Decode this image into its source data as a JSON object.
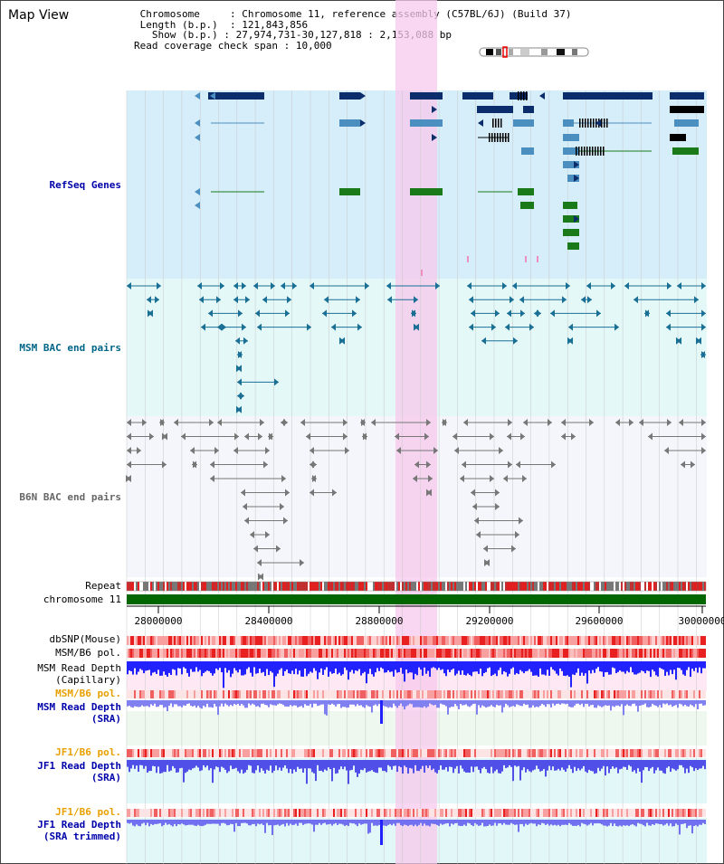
{
  "map_view_title": "Map View",
  "info": {
    "chromosome_key": "Chromosome",
    "chromosome_val": "Chromosome 11, reference assembly (C57BL/6J) (Build 37)",
    "length_key": "Length (b.p.)",
    "length_val": "121,843,856",
    "show_key": "Show (b.p.)",
    "show_val": "27,974,731-30,127,818 : 2,153,088 bp",
    "coverage_key": "Read coverage check span",
    "coverage_val": "10,000"
  },
  "tracks": {
    "refseq": "RefSeq Genes",
    "msm_bac": "MSM BAC end pairs",
    "b6n_bac": "B6N BAC end pairs",
    "repeat": "Repeat",
    "chromosome": "chromosome 11",
    "dbsnp": "dbSNP(Mouse)",
    "msmb6_pol": "MSM/B6 pol.",
    "msm_depth_cap_1": "MSM Read Depth",
    "msm_depth_cap_2": "(Capillary)",
    "msmb6_pol2": "MSM/B6 pol.",
    "msm_depth_sra_1": "MSM Read Depth",
    "msm_depth_sra_2": "(SRA)",
    "jf1b6_pol": "JF1/B6 pol.",
    "jf1_depth_sra_1": "JF1 Read Depth",
    "jf1_depth_sra_2": "(SRA)",
    "jf1b6_pol2": "JF1/B6 pol.",
    "jf1_depth_trim_1": "JF1 Read Depth",
    "jf1_depth_trim_2": "(SRA trimmed)"
  },
  "axis": {
    "ticks": [
      "28000000",
      "28400000",
      "28800000",
      "29200000",
      "29600000",
      "30000000"
    ]
  },
  "colors": {
    "gene_dark": "#0b2d6b",
    "gene_mid": "#4a8fbf",
    "gene_green": "#1a7a1a",
    "msm_pair": "#1a6f95",
    "b6n_pair": "#777777",
    "highlight": "#f7c8ec",
    "refseq_bg": "#d6eefa",
    "msm_bg": "#e4f8f8",
    "b6n_bg": "#f4f6fb",
    "chromosome_bar": "#006600",
    "depth_blue": "#2222ff",
    "depth_light": "#8888ff",
    "label_blue": "#0000aa",
    "label_teal": "#006688",
    "label_orange": "#e8a000"
  }
}
